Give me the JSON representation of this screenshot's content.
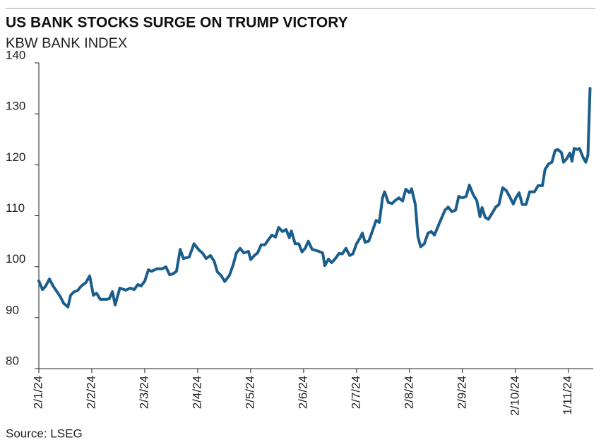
{
  "chart_data": {
    "type": "line",
    "title": "US BANK STOCKS SURGE ON TRUMP VICTORY",
    "subtitle": "KBW BANK INDEX",
    "source": "Source: LSEG",
    "color": "#1b5e8c",
    "x": [
      0,
      0.07,
      0.13,
      0.2,
      0.27,
      0.33,
      0.4,
      0.47,
      0.55,
      0.6,
      0.67,
      0.73,
      0.8,
      0.89,
      0.96,
      1.03,
      1.09,
      1.16,
      1.27,
      1.33,
      1.39,
      1.44,
      1.53,
      1.64,
      1.73,
      1.8,
      1.87,
      1.93,
      2,
      2.07,
      2.13,
      2.23,
      2.33,
      2.4,
      2.47,
      2.53,
      2.6,
      2.67,
      2.73,
      2.84,
      2.93,
      3.03,
      3.09,
      3.16,
      3.24,
      3.31,
      3.37,
      3.44,
      3.51,
      3.6,
      3.67,
      3.73,
      3.8,
      3.87,
      3.96,
      4,
      4.07,
      4.13,
      4.2,
      4.27,
      4.33,
      4.4,
      4.47,
      4.53,
      4.6,
      4.67,
      4.73,
      4.77,
      4.84,
      4.91,
      4.97,
      5.03,
      5.09,
      5.16,
      5.23,
      5.29,
      5.36,
      5.4,
      5.47,
      5.53,
      5.6,
      5.67,
      5.73,
      5.8,
      5.87,
      5.93,
      6,
      6.07,
      6.11,
      6.16,
      6.23,
      6.31,
      6.37,
      6.43,
      6.49,
      6.53,
      6.6,
      6.67,
      6.73,
      6.8,
      6.87,
      6.93,
      7,
      7.04,
      7.11,
      7.16,
      7.21,
      7.28,
      7.35,
      7.41,
      7.47,
      7.53,
      7.6,
      7.67,
      7.73,
      7.8,
      7.87,
      7.93,
      8,
      8.07,
      8.13,
      8.2,
      8.27,
      8.33,
      8.37,
      8.43,
      8.49,
      8.56,
      8.63,
      8.69,
      8.76,
      8.83,
      8.89,
      8.96,
      9.01,
      9.07,
      9.13,
      9.2,
      9.27,
      9.36,
      9.43,
      9.51,
      9.56,
      9.63,
      9.69,
      9.75,
      9.8,
      9.87,
      9.91,
      9.97,
      10.03,
      10.07,
      10.11,
      10.17,
      10.21,
      10.28,
      10.33,
      10.37,
      10.41
    ],
    "values": [
      97.2,
      95.5,
      96.2,
      97.6,
      96.2,
      95.3,
      94.2,
      92.8,
      92.1,
      94.4,
      95.1,
      95.3,
      96.2,
      96.9,
      98.2,
      94.4,
      94.8,
      93.6,
      93.6,
      93.7,
      95.1,
      92.5,
      95.8,
      95.4,
      95.8,
      95.5,
      96.5,
      96.2,
      97.2,
      99.4,
      99.1,
      99.6,
      99.6,
      100.0,
      98.4,
      98.6,
      99.1,
      103.4,
      101.6,
      101.9,
      104.5,
      103.2,
      102.7,
      101.6,
      102.2,
      101.1,
      99.0,
      98.3,
      97.1,
      98.3,
      100.4,
      102.7,
      103.6,
      102.7,
      103.0,
      101.4,
      102.2,
      102.7,
      104.3,
      104.3,
      105.2,
      106.2,
      105.8,
      107.7,
      106.9,
      107.3,
      105.7,
      107.0,
      104.5,
      104.5,
      102.9,
      103.6,
      105.0,
      103.4,
      103.2,
      103.0,
      102.7,
      100.2,
      101.5,
      100.8,
      101.6,
      102.6,
      102.5,
      103.6,
      102.2,
      102.5,
      104.5,
      105.7,
      106.6,
      104.8,
      105.0,
      107.3,
      109.1,
      108.7,
      113.5,
      114.7,
      112.6,
      112.4,
      113.0,
      113.5,
      112.9,
      115.2,
      114.5,
      115.3,
      112.2,
      105.9,
      103.9,
      104.5,
      106.6,
      106.9,
      106.2,
      107.7,
      109.4,
      111.1,
      111.7,
      110.8,
      111.1,
      113.8,
      113.5,
      113.8,
      116.0,
      114.2,
      113.0,
      109.8,
      111.6,
      109.7,
      109.3,
      110.5,
      111.7,
      112.2,
      115.5,
      114.9,
      113.8,
      112.3,
      113.5,
      114.5,
      112.2,
      112.2,
      114.7,
      114.7,
      115.9,
      115.9,
      119.1,
      120.2,
      120.5,
      122.8,
      123.0,
      122.4,
      120.5,
      121.2,
      122.3,
      120.7,
      123.2,
      123.0,
      123.2,
      121.4,
      120.5,
      121.9,
      135.0
    ],
    "xlim": [
      0,
      10.47
    ],
    "xticks": [
      {
        "value": 0,
        "label": "2/1/24"
      },
      {
        "value": 1,
        "label": "2/2/24"
      },
      {
        "value": 2,
        "label": "2/3/24"
      },
      {
        "value": 3,
        "label": "2/4/24"
      },
      {
        "value": 4,
        "label": "2/5/24"
      },
      {
        "value": 5,
        "label": "2/6/24"
      },
      {
        "value": 6,
        "label": "2/7/24"
      },
      {
        "value": 7,
        "label": "2/8/24"
      },
      {
        "value": 8,
        "label": "2/9/24"
      },
      {
        "value": 9,
        "label": "2/10/24"
      },
      {
        "value": 10,
        "label": "1/11/24"
      }
    ],
    "ylim": [
      80,
      140
    ],
    "yticks": [
      80,
      90,
      100,
      110,
      120,
      130,
      140
    ]
  }
}
